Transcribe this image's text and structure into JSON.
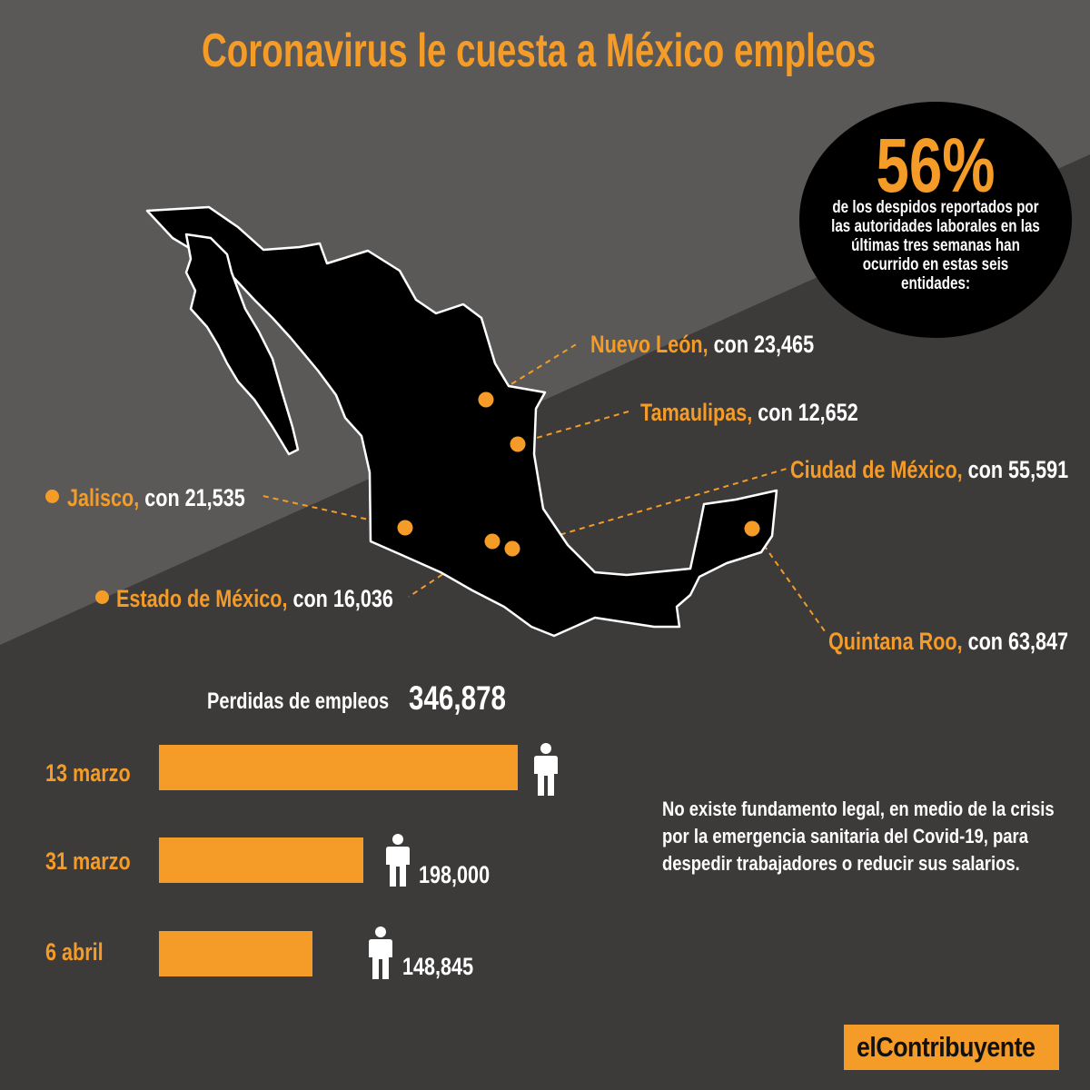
{
  "title": "Coronavirus le cuesta a México empleos",
  "highlight": {
    "percent": "56%",
    "note": "de los despidos reportados por las autoridades laborales en las últimas tres semanas han ocurrido en estas seis entidades:"
  },
  "states": [
    {
      "name": "Nuevo León,",
      "rest": " con 23,465",
      "value": 23465
    },
    {
      "name": "Tamaulipas,",
      "rest": " con 12,652",
      "value": 12652
    },
    {
      "name": "Ciudad de México,",
      "rest": " con 55,591",
      "value": 55591
    },
    {
      "name": "Jalisco,",
      "rest": " con 21,535",
      "value": 21535
    },
    {
      "name": "Estado de México,",
      "rest": " con 16,036",
      "value": 16036
    },
    {
      "name": "Quintana Roo,",
      "rest": " con 63,847",
      "value": 63847
    }
  ],
  "losses": {
    "label": "Perdidas de empleos",
    "total": "346,878"
  },
  "chart_data": {
    "type": "bar",
    "orientation": "horizontal",
    "categories": [
      "13 marzo",
      "31 marzo",
      "6 abril"
    ],
    "values": [
      346878,
      198000,
      148845
    ],
    "value_labels": [
      "",
      "198,000",
      "148,845"
    ],
    "xlim": [
      0,
      346878
    ]
  },
  "body_text": "No existe fundamento legal, en medio de la crisis por la emergencia sanitaria del Covid-19, para despedir trabajadores o reducir sus salarios.",
  "body_lines": [
    "No existe fundamento legal, en medio de la crisis",
    "por la emergencia sanitaria del Covid-19, para",
    "despedir trabajadores o reducir sus salarios."
  ],
  "logo": "elContribuyente",
  "colors": {
    "accent": "#f49c27",
    "background_dark": "#3d3a3a",
    "background_light": "#5b5958",
    "map": "#000000",
    "text": "#ffffff"
  },
  "icons": [
    "person-icon"
  ]
}
